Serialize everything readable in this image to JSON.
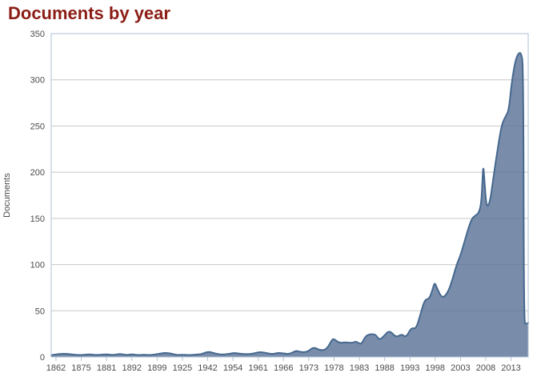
{
  "header": {
    "title": "Documents by year"
  },
  "chart_data": {
    "type": "area",
    "title": "Documents by year",
    "xlabel": "",
    "ylabel": "Documents",
    "ylim": [
      0,
      350
    ],
    "y_ticks": [
      0,
      50,
      100,
      150,
      200,
      250,
      300,
      350
    ],
    "x_tick_labels": [
      "1862",
      "1875",
      "1881",
      "1892",
      "1899",
      "1925",
      "1942",
      "1954",
      "1961",
      "1966",
      "1973",
      "1978",
      "1983",
      "1988",
      "1993",
      "1998",
      "2003",
      "2008",
      "2013"
    ],
    "grid": "horizontal-only",
    "legend": "none",
    "series": [
      {
        "name": "Documents",
        "note": "points are [x_percent_across_axis, documents_value] read from the curve",
        "points": [
          [
            0,
            2
          ],
          [
            2.3,
            4
          ],
          [
            4.7,
            2.5
          ],
          [
            6.4,
            2
          ],
          [
            8,
            3
          ],
          [
            9.4,
            2
          ],
          [
            11.6,
            3
          ],
          [
            13,
            2
          ],
          [
            14.4,
            3.5
          ],
          [
            15.8,
            2
          ],
          [
            16.9,
            3
          ],
          [
            18.1,
            2
          ],
          [
            19.5,
            2.5
          ],
          [
            20.8,
            2
          ],
          [
            22.1,
            3
          ],
          [
            23.7,
            4.5
          ],
          [
            25,
            4
          ],
          [
            26.2,
            2
          ],
          [
            27.5,
            2.5
          ],
          [
            28.9,
            2
          ],
          [
            30.2,
            2.5
          ],
          [
            31.5,
            3
          ],
          [
            32.9,
            6
          ],
          [
            34.2,
            4
          ],
          [
            35.6,
            2.5
          ],
          [
            36.9,
            3
          ],
          [
            38.3,
            4.5
          ],
          [
            39.6,
            3.5
          ],
          [
            40.9,
            3
          ],
          [
            42.3,
            3.5
          ],
          [
            43.6,
            5.5
          ],
          [
            45,
            4.5
          ],
          [
            46.3,
            3
          ],
          [
            47.5,
            4.5
          ],
          [
            48.7,
            4
          ],
          [
            50,
            3
          ],
          [
            51.3,
            7
          ],
          [
            52.5,
            5
          ],
          [
            53.9,
            6
          ],
          [
            55,
            11
          ],
          [
            56.4,
            7
          ],
          [
            57.7,
            8
          ],
          [
            58.8,
            18
          ],
          [
            59.2,
            20
          ],
          [
            60.4,
            15
          ],
          [
            61.7,
            16
          ],
          [
            63.1,
            15
          ],
          [
            63.9,
            17
          ],
          [
            64.4,
            15
          ],
          [
            65.1,
            14
          ],
          [
            65.9,
            23
          ],
          [
            67.1,
            25
          ],
          [
            68.1,
            24
          ],
          [
            68.8,
            18
          ],
          [
            69.8,
            23
          ],
          [
            70.9,
            29
          ],
          [
            72.3,
            21
          ],
          [
            73.5,
            25
          ],
          [
            74.4,
            21
          ],
          [
            75.5,
            32
          ],
          [
            76.5,
            30
          ],
          [
            77.5,
            48
          ],
          [
            78.3,
            62
          ],
          [
            79.3,
            63
          ],
          [
            80,
            74
          ],
          [
            80.4,
            81
          ],
          [
            80.9,
            74
          ],
          [
            82,
            63
          ],
          [
            83.2,
            70
          ],
          [
            84.2,
            85
          ],
          [
            85,
            100
          ],
          [
            85.8,
            110
          ],
          [
            86.6,
            124
          ],
          [
            87.5,
            140
          ],
          [
            88.2,
            150
          ],
          [
            88.9,
            153
          ],
          [
            89.7,
            156
          ],
          [
            90.2,
            168
          ],
          [
            90.45,
            196
          ],
          [
            90.6,
            207
          ],
          [
            90.8,
            193
          ],
          [
            91.1,
            171
          ],
          [
            91.4,
            162
          ],
          [
            92,
            168
          ],
          [
            92.6,
            190
          ],
          [
            93.2,
            212
          ],
          [
            93.9,
            235
          ],
          [
            94.5,
            252
          ],
          [
            95.2,
            260
          ],
          [
            95.9,
            266
          ],
          [
            96.5,
            295
          ],
          [
            97.2,
            318
          ],
          [
            97.8,
            328
          ],
          [
            98.5,
            330
          ],
          [
            99.0,
            315
          ],
          [
            99.1,
            36
          ],
          [
            99.6,
            36
          ],
          [
            100,
            37
          ]
        ]
      }
    ]
  },
  "colors": {
    "title_text": "#8B1D15",
    "area_fill": "rgba(88,113,150,0.8)",
    "area_stroke": "#46688E",
    "gridline": "#C8C8C8",
    "axis_border": "#AFC2D6",
    "tick_text": "#4B4B4B"
  }
}
